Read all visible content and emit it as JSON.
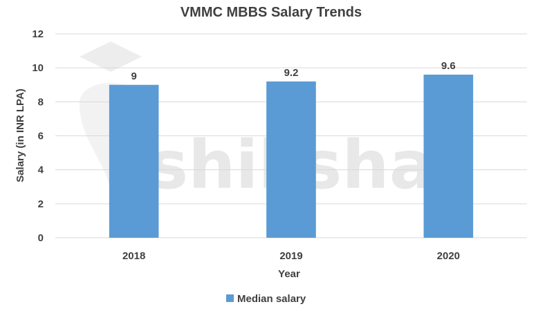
{
  "chart_data": {
    "type": "bar",
    "title": "VMMC MBBS Salary Trends",
    "xlabel": "Year",
    "ylabel": "Salary (in INR LPA)",
    "categories": [
      "2018",
      "2019",
      "2020"
    ],
    "series": [
      {
        "name": "Median salary",
        "values": [
          9,
          9.2,
          9.6
        ],
        "color": "#5b9bd5"
      }
    ],
    "data_labels": [
      "9",
      "9.2",
      "9.6"
    ],
    "ylim": [
      0,
      12
    ],
    "yticks": [
      0,
      2,
      4,
      6,
      8,
      10,
      12
    ],
    "grid": true,
    "legend_position": "bottom"
  },
  "watermark": {
    "text": "shiksha",
    "icon": "graduation-cap-icon"
  }
}
